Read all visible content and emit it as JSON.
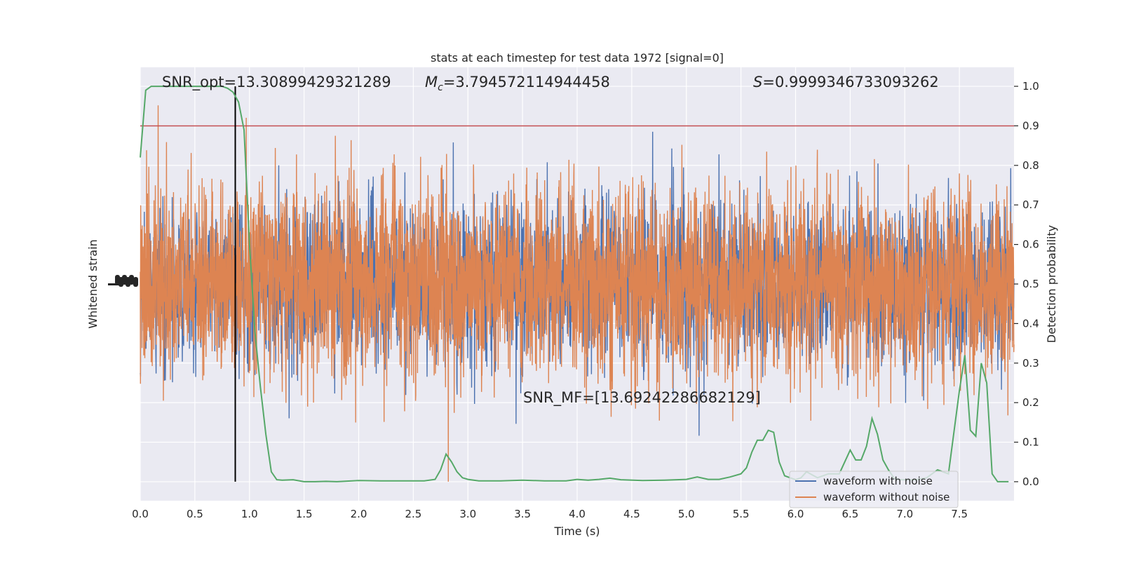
{
  "chart_data": {
    "type": "line",
    "title": "stats at each timestep for test data 1972 [signal=0]",
    "xlabel": "Time (s)",
    "ylabel_left": "Whitened strain",
    "ylabel_right": "Detection probability",
    "xlim": [
      0.0,
      8.0
    ],
    "ylim_right": [
      -0.048,
      1.048
    ],
    "x_ticks": [
      "0.0",
      "0.5",
      "1.0",
      "1.5",
      "2.0",
      "2.5",
      "3.0",
      "3.5",
      "4.0",
      "4.5",
      "5.0",
      "5.5",
      "6.0",
      "6.5",
      "7.0",
      "7.5"
    ],
    "x_tick_values": [
      0.0,
      0.5,
      1.0,
      1.5,
      2.0,
      2.5,
      3.0,
      3.5,
      4.0,
      4.5,
      5.0,
      5.5,
      6.0,
      6.5,
      7.0,
      7.5
    ],
    "y_right_ticks": [
      "0.0",
      "0.1",
      "0.2",
      "0.3",
      "0.4",
      "0.5",
      "0.6",
      "0.7",
      "0.8",
      "0.9",
      "1.0"
    ],
    "y_right_tick_values": [
      0.0,
      0.1,
      0.2,
      0.3,
      0.4,
      0.5,
      0.6,
      0.7,
      0.8,
      0.9,
      1.0
    ],
    "grid": true,
    "annotations": {
      "snr_opt": "SNR_opt=13.30899429321289",
      "mc_prefix": "M",
      "mc_sub": "c",
      "mc_value": "=3.794572114944458",
      "s_prefix": "S",
      "s_value": "=0.9999346733093262",
      "snr_mf": "SNR_MF=[13.69242286682129]"
    },
    "threshold": 0.9,
    "marker_time": 0.87,
    "legend": {
      "placement": "lower-right",
      "entries": [
        "waveform with noise",
        "waveform without noise"
      ]
    },
    "series": [
      {
        "name": "waveform with noise",
        "color": "#4c72b0",
        "style": "dense noisy strain, mostly hidden behind orange trace"
      },
      {
        "name": "waveform without noise",
        "color": "#dd8452",
        "style": "dense noisy strain spanning roughly 0.17–0.85 of the probability axis"
      },
      {
        "name": "detection probability",
        "color": "#55a868",
        "x": [
          0.0,
          0.05,
          0.1,
          0.15,
          0.2,
          0.3,
          0.4,
          0.5,
          0.6,
          0.7,
          0.75,
          0.8,
          0.85,
          0.9,
          0.95,
          1.0,
          1.05,
          1.1,
          1.15,
          1.2,
          1.25,
          1.3,
          1.4,
          1.5,
          1.6,
          1.7,
          1.8,
          2.0,
          2.2,
          2.4,
          2.6,
          2.7,
          2.75,
          2.8,
          2.85,
          2.9,
          2.95,
          3.0,
          3.1,
          3.3,
          3.5,
          3.7,
          3.9,
          4.0,
          4.1,
          4.2,
          4.3,
          4.4,
          4.6,
          4.8,
          5.0,
          5.1,
          5.2,
          5.3,
          5.4,
          5.5,
          5.55,
          5.6,
          5.65,
          5.7,
          5.75,
          5.8,
          5.85,
          5.9,
          5.95,
          6.0,
          6.05,
          6.1,
          6.2,
          6.3,
          6.4,
          6.5,
          6.55,
          6.6,
          6.65,
          6.7,
          6.75,
          6.8,
          6.85,
          6.9,
          6.95,
          7.0,
          7.05,
          7.1,
          7.2,
          7.3,
          7.4,
          7.5,
          7.55,
          7.6,
          7.65,
          7.7,
          7.75,
          7.8,
          7.85,
          7.9,
          7.95
        ],
        "values": [
          0.82,
          0.99,
          1.0,
          1.0,
          1.0,
          1.0,
          1.0,
          1.0,
          1.0,
          1.0,
          1.0,
          0.995,
          0.985,
          0.96,
          0.89,
          0.6,
          0.38,
          0.24,
          0.12,
          0.025,
          0.005,
          0.004,
          0.005,
          0.0,
          0.0,
          0.001,
          0.0,
          0.003,
          0.002,
          0.002,
          0.002,
          0.006,
          0.03,
          0.07,
          0.05,
          0.025,
          0.01,
          0.006,
          0.002,
          0.002,
          0.004,
          0.002,
          0.002,
          0.006,
          0.004,
          0.006,
          0.009,
          0.005,
          0.003,
          0.004,
          0.006,
          0.012,
          0.006,
          0.006,
          0.012,
          0.02,
          0.035,
          0.075,
          0.105,
          0.105,
          0.13,
          0.125,
          0.05,
          0.015,
          0.01,
          0.005,
          0.01,
          0.025,
          0.01,
          0.02,
          0.02,
          0.08,
          0.055,
          0.055,
          0.09,
          0.16,
          0.12,
          0.055,
          0.03,
          0.01,
          0.005,
          0.005,
          0.005,
          0.005,
          0.01,
          0.03,
          0.02,
          0.23,
          0.32,
          0.13,
          0.115,
          0.3,
          0.25,
          0.02,
          0.0,
          0.0,
          0.0
        ]
      }
    ]
  }
}
